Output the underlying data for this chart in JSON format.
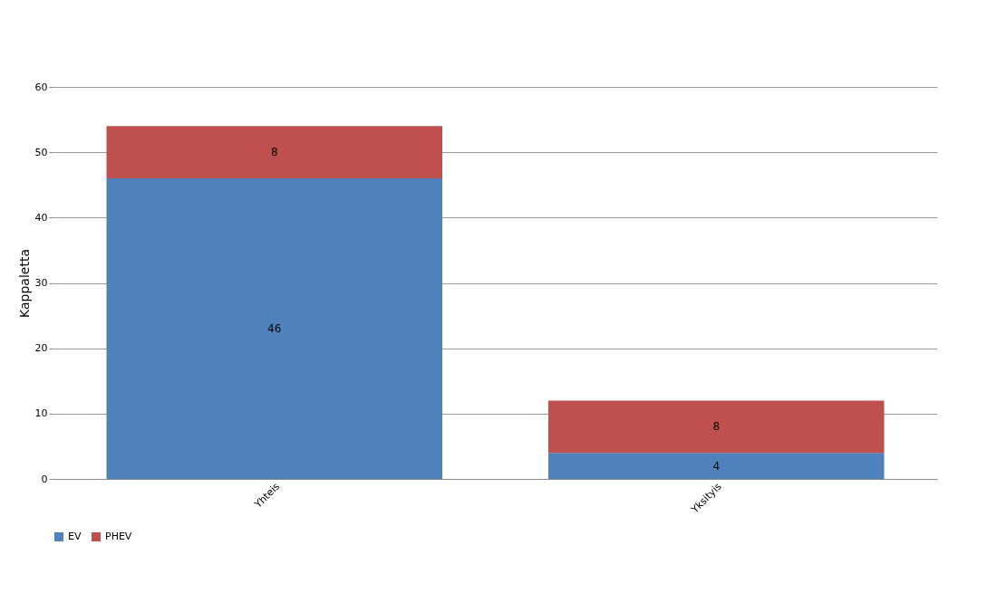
{
  "chart_data": {
    "type": "bar",
    "ylabel": "Kappaletta",
    "categories": [
      "Yhteis",
      "Yksityis"
    ],
    "series": [
      {
        "name": "EV",
        "color": "#4f81bd",
        "values": [
          46,
          4
        ]
      },
      {
        "name": "PHEV",
        "color": "#c0504d",
        "values": [
          8,
          8
        ]
      }
    ],
    "stacked": true,
    "ylim": [
      0,
      60
    ],
    "yticks": [
      0,
      10,
      20,
      30,
      40,
      50,
      60
    ],
    "grid": "y",
    "legend": "bottom",
    "data_labels": true
  }
}
